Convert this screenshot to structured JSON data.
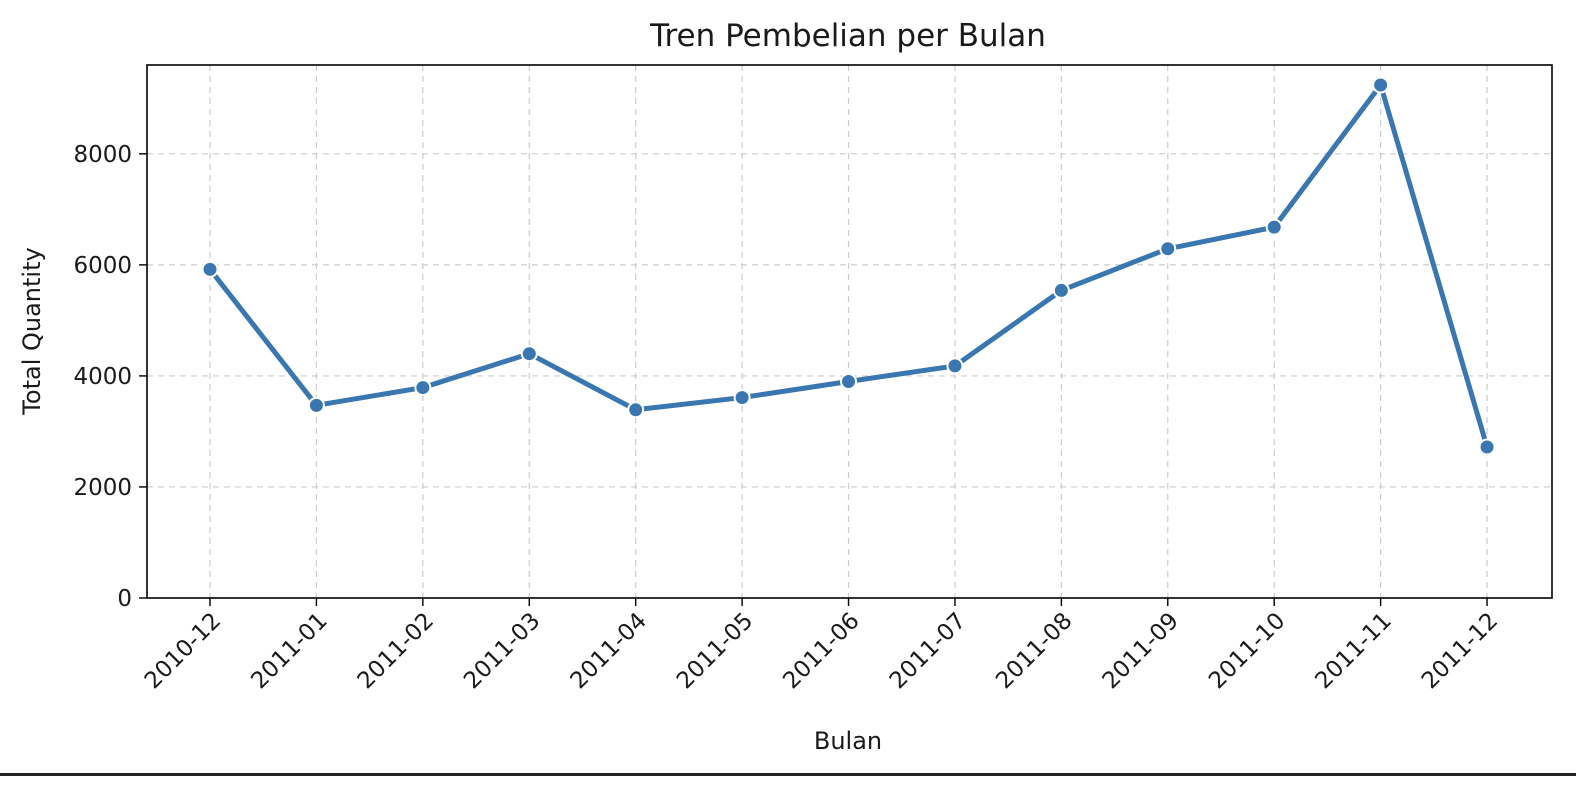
{
  "colors": {
    "line": "#3a76b0",
    "grid": "#cccccc",
    "axis": "#000000",
    "background": "#ffffff"
  },
  "chart_data": {
    "type": "line",
    "title": "Tren Pembelian per Bulan",
    "xlabel": "Bulan",
    "ylabel": "Total Quantity",
    "categories": [
      "2010-12",
      "2011-01",
      "2011-02",
      "2011-03",
      "2011-04",
      "2011-05",
      "2011-06",
      "2011-07",
      "2011-08",
      "2011-09",
      "2011-10",
      "2011-11",
      "2011-12"
    ],
    "series": [
      {
        "values": [
          5920,
          3470,
          3790,
          4400,
          3390,
          3610,
          3900,
          4180,
          5540,
          6290,
          6680,
          9240,
          2720
        ],
        "marker": "circle"
      }
    ],
    "yticks": [
      0,
      2000,
      4000,
      6000,
      8000
    ],
    "ylim": [
      0,
      9600
    ],
    "grid": true,
    "grid_style": "dashed",
    "legend": "none"
  }
}
